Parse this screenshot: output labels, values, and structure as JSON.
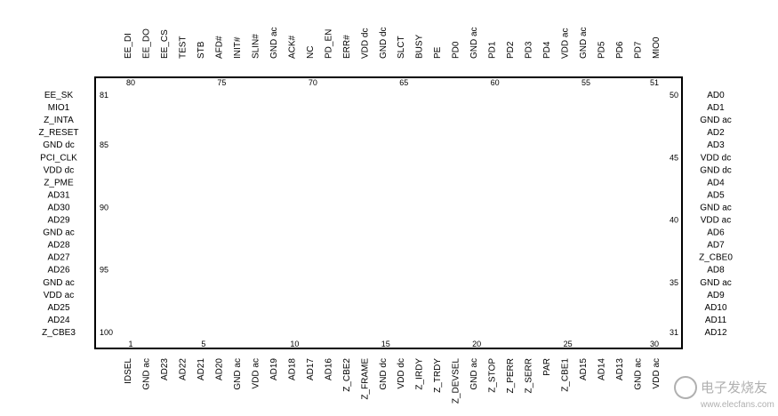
{
  "top": {
    "labels": [
      "EE_DI",
      "EE_DO",
      "EE_CS",
      "TEST",
      "STB",
      "AFD#",
      "INIT#",
      "SLIN#",
      "GND ac",
      "ACK#",
      "NC",
      "PD_EN",
      "ERR#",
      "VDD dc",
      "GND dc",
      "SLCT",
      "BUSY",
      "PE",
      "PD0",
      "GND ac",
      "PD1",
      "PD2",
      "PD3",
      "PD4",
      "VDD ac",
      "GND ac",
      "PD5",
      "PD6",
      "PD7",
      "MIO0"
    ],
    "pin_numbers": [
      80,
      75,
      70,
      65,
      60,
      55,
      51
    ]
  },
  "left": {
    "labels": [
      "EE_SK",
      "MIO1",
      "Z_INTA",
      "Z_RESET",
      "GND dc",
      "PCI_CLK",
      "VDD dc",
      "Z_PME",
      "AD31",
      "AD30",
      "AD29",
      "GND ac",
      "AD28",
      "AD27",
      "AD26",
      "GND ac",
      "VDD ac",
      "AD25",
      "AD24",
      "Z_CBE3"
    ],
    "pin_numbers": [
      81,
      85,
      90,
      95,
      100
    ]
  },
  "right": {
    "labels": [
      "AD0",
      "AD1",
      "GND ac",
      "AD2",
      "AD3",
      "VDD dc",
      "GND dc",
      "AD4",
      "AD5",
      "GND ac",
      "VDD ac",
      "AD6",
      "AD7",
      "Z_CBE0",
      "AD8",
      "GND ac",
      "AD9",
      "AD10",
      "AD11",
      "AD12"
    ],
    "pin_numbers": [
      50,
      45,
      40,
      35,
      31
    ]
  },
  "bottom": {
    "labels": [
      "IDSEL",
      "GND ac",
      "AD23",
      "AD22",
      "AD21",
      "AD20",
      "GND ac",
      "VDD ac",
      "AD19",
      "AD18",
      "AD17",
      "AD16",
      "Z_CBE2",
      "Z_FRAME",
      "GND dc",
      "VDD dc",
      "Z_IRDY",
      "Z_TRDY",
      "Z_DEVSEL",
      "GND ac",
      "Z_STOP",
      "Z_PERR",
      "Z_SERR",
      "PAR",
      "Z_CBE1",
      "AD15",
      "AD14",
      "AD13",
      "GND ac",
      "VDD ac"
    ],
    "pin_numbers": [
      1,
      5,
      10,
      15,
      20,
      25,
      30
    ]
  },
  "watermark": {
    "title": "电子发烧友",
    "url": "www.elecfans.com"
  }
}
